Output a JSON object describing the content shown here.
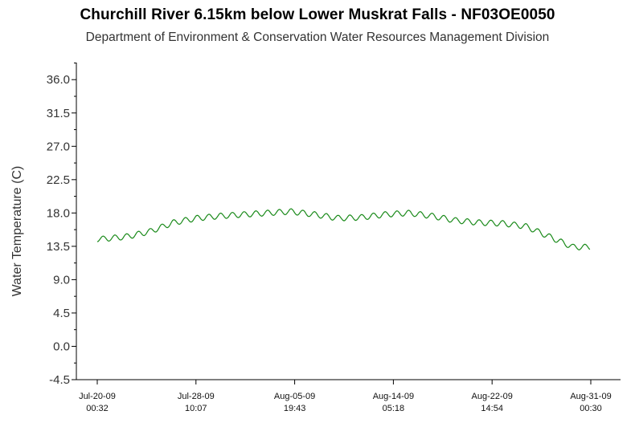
{
  "chart_data": {
    "type": "line",
    "title": "Churchill River 6.15km below Lower Muskrat Falls - NF03OE0050",
    "subtitle": "Department of Environment & Conservation Water Resources Management Division",
    "xlabel": "",
    "ylabel": "Water Temperature (C)",
    "ylim": [
      -4.5,
      38.3
    ],
    "yticks": [
      "36.0",
      "31.5",
      "27.0",
      "22.5",
      "18.0",
      "13.5",
      "9.0",
      "4.5",
      "0.0",
      "-4.5"
    ],
    "x_ticks": [
      {
        "date": "Jul-20-09",
        "time": "00:32"
      },
      {
        "date": "Jul-28-09",
        "time": "10:07"
      },
      {
        "date": "Aug-05-09",
        "time": "19:43"
      },
      {
        "date": "Aug-14-09",
        "time": "05:18"
      },
      {
        "date": "Aug-22-09",
        "time": "14:54"
      },
      {
        "date": "Aug-31-09",
        "time": "00:30"
      }
    ],
    "grid": false,
    "legend": "none",
    "line_color": "#1a8a1a",
    "series": [
      {
        "x": [
          "2009-07-20",
          "2009-07-22",
          "2009-07-24",
          "2009-07-26",
          "2009-07-28",
          "2009-07-30",
          "2009-08-01",
          "2009-08-03",
          "2009-08-05",
          "2009-08-07",
          "2009-08-09",
          "2009-08-11",
          "2009-08-13",
          "2009-08-15",
          "2009-08-17",
          "2009-08-19",
          "2009-08-21",
          "2009-08-23",
          "2009-08-25",
          "2009-08-27",
          "2009-08-29",
          "2009-08-31"
        ],
        "values": [
          14.5,
          14.8,
          15.5,
          16.7,
          17.3,
          17.6,
          17.8,
          18.0,
          18.2,
          17.8,
          17.3,
          17.4,
          17.8,
          18.0,
          17.6,
          17.0,
          16.7,
          16.6,
          16.2,
          14.8,
          13.4,
          13.4
        ]
      }
    ]
  }
}
